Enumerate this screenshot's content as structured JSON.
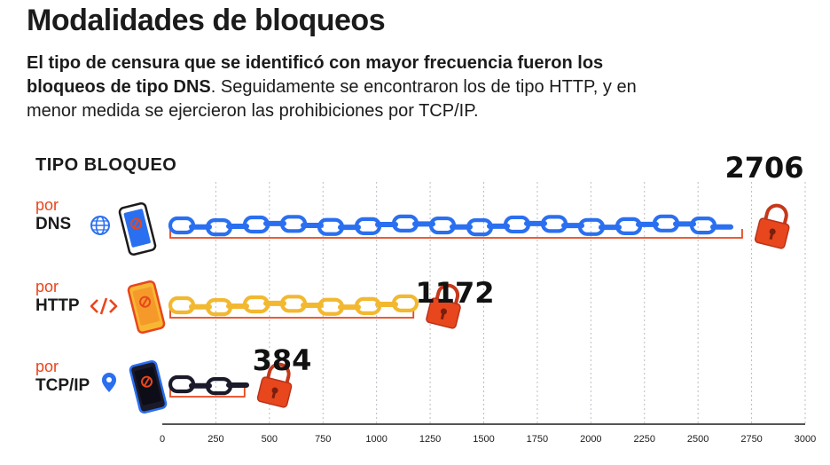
{
  "title": "Modalidades de bloqueos",
  "subtitle": {
    "bold": "El tipo de censura que se identificó con mayor frecuencia fueron los bloqueos de tipo DNS",
    "normal": ". Seguidamente se encontraron los de tipo HTTP, y en menor medida se ejercieron las prohibiciones por TCP/IP."
  },
  "axis_heading": "TIPO BLOQUEO",
  "rows": [
    {
      "prefix": "por",
      "category": "DNS",
      "icon": "globe-icon"
    },
    {
      "prefix": "por",
      "category": "HTTP",
      "icon": "code-icon"
    },
    {
      "prefix": "por",
      "category": "TCP/IP",
      "icon": "location-pin-icon"
    }
  ],
  "colors": {
    "accent": "#e8461d",
    "dns_chain": "#2a6ff0",
    "http_chain": "#f2b830",
    "tcpip_chain": "#1a1a2a",
    "lock": "#e8461d",
    "grid": "#b8bcc4"
  },
  "chart_data": {
    "type": "bar",
    "title": "Modalidades de bloqueos",
    "xlabel": "",
    "ylabel": "TIPO BLOQUEO",
    "categories": [
      "DNS",
      "HTTP",
      "TCP/IP"
    ],
    "values": [
      2706,
      1172,
      384
    ],
    "xlim": [
      0,
      3000
    ],
    "ticks": [
      0,
      250,
      500,
      750,
      1000,
      1250,
      1500,
      1750,
      2000,
      2250,
      2500,
      2750,
      3000
    ],
    "value_labels": [
      "2706",
      "1172",
      "384"
    ],
    "grid": true,
    "orientation": "horizontal"
  }
}
